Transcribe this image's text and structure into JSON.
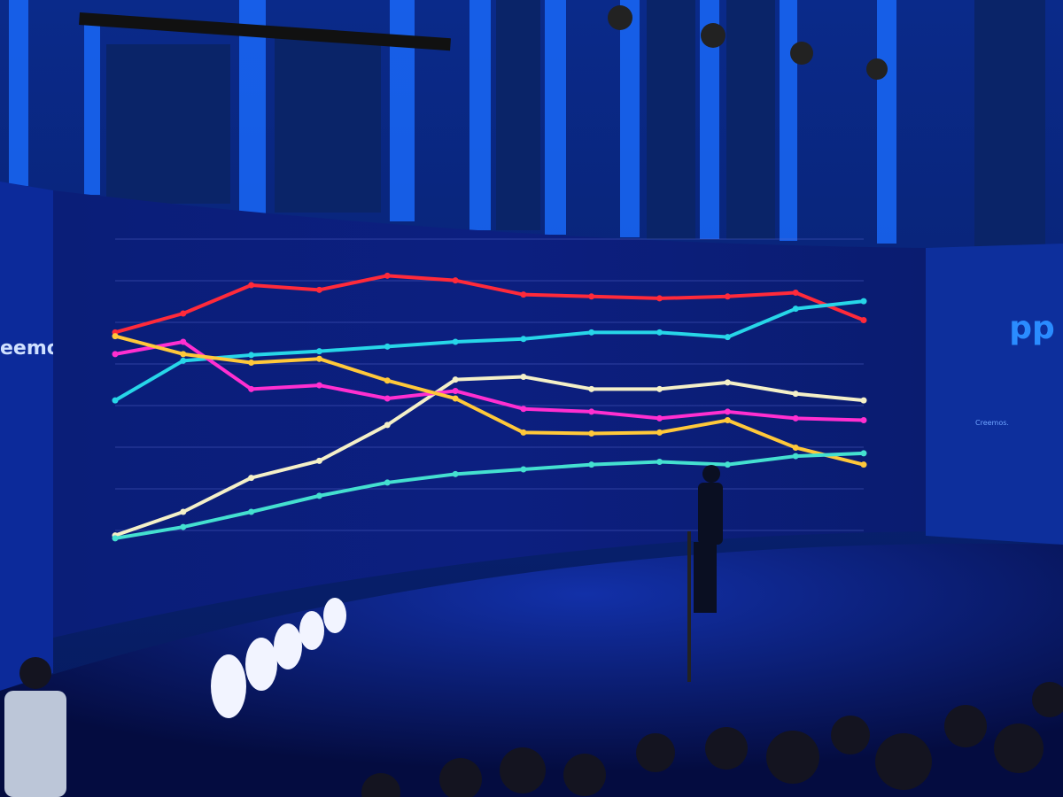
{
  "screen": {
    "left_panel_text": "eemos.",
    "right_panel_logo": "pp",
    "right_panel_text": "Creemos.",
    "chart": {
      "type": "line",
      "ylim": [
        0,
        30
      ],
      "series": [
        {
          "color": "#ff2a3a",
          "values": [
            22,
            24,
            27,
            26.5,
            28,
            27.5,
            26,
            25.8,
            25.6,
            25.8,
            26.2,
            23.3
          ]
        },
        {
          "color": "#27d6e8",
          "values": [
            14.8,
            19,
            19.6,
            20,
            20.5,
            21,
            21.3,
            22,
            22,
            21.5,
            24.5,
            25.3
          ]
        },
        {
          "color": "#f4f0c8",
          "values": [
            0.5,
            3,
            6.6,
            8.4,
            12.2,
            17,
            17.3,
            16,
            16,
            16.7,
            15.5,
            14.8
          ]
        },
        {
          "color": "#ff2fd0",
          "values": [
            19.7,
            21,
            16,
            16.4,
            15,
            15.8,
            13.9,
            13.6,
            12.9,
            13.6,
            12.9,
            12.7
          ]
        },
        {
          "color": "#ffc83a",
          "values": [
            21.6,
            19.7,
            18.8,
            19.2,
            16.9,
            15,
            11.4,
            11.3,
            11.4,
            12.7,
            9.8,
            8
          ]
        },
        {
          "color": "#44e0d0",
          "values": [
            0.2,
            1.4,
            3,
            4.7,
            6.1,
            7,
            7.5,
            8,
            8.3,
            8,
            8.9,
            9.2
          ]
        }
      ]
    }
  }
}
